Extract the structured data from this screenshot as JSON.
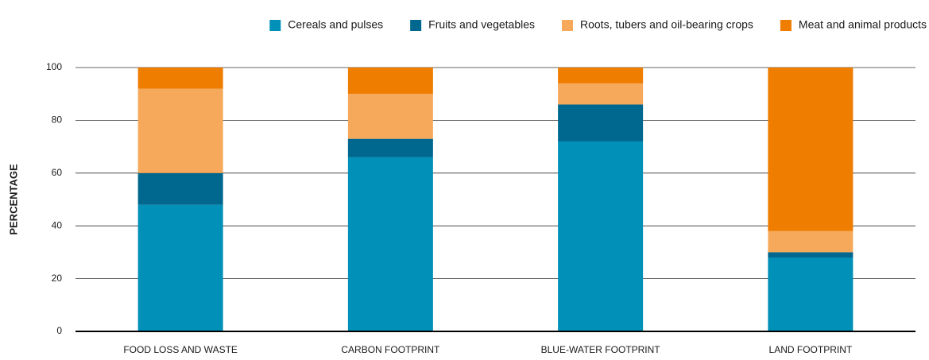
{
  "chart_data": {
    "type": "stacked_bar",
    "categories": [
      "FOOD LOSS AND WASTE",
      "CARBON FOOTPRINT",
      "BLUE-WATER FOOTPRINT",
      "LAND FOOTPRINT"
    ],
    "series": [
      {
        "name": "Cereals and pulses",
        "color": "#0090b8",
        "values": [
          48,
          66,
          72,
          28
        ]
      },
      {
        "name": "Fruits and vegetables",
        "color": "#00678f",
        "values": [
          12,
          7,
          14,
          2
        ]
      },
      {
        "name": "Roots, tubers and oil-bearing crops",
        "color": "#f6a95a",
        "values": [
          32,
          17,
          8,
          8
        ]
      },
      {
        "name": "Meat and animal products",
        "color": "#ef7d00",
        "values": [
          8,
          10,
          6,
          62
        ]
      }
    ],
    "y_label": "PERCENTAGE",
    "ylim": [
      0,
      100
    ],
    "yticks": [
      0,
      20,
      40,
      60,
      80,
      100
    ],
    "grid": true,
    "legend": "top-right"
  }
}
